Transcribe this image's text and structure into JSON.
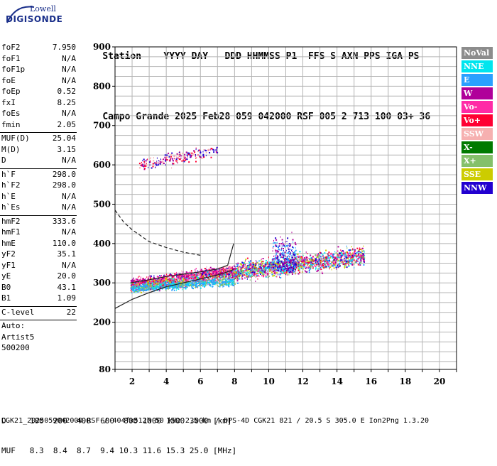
{
  "logo": {
    "line1": "Lowell",
    "line2": "DIGISONDE"
  },
  "header": {
    "row1": [
      "Station",
      "YYYY",
      "DAY",
      "DDD",
      "HHMMSS",
      "P1",
      "FFS",
      "S",
      "AXN",
      "PPS",
      "IGA",
      "PS"
    ],
    "row2": [
      "Campo Grande",
      "2025",
      "Feb28",
      "059",
      "042000",
      "RSF",
      "005",
      "2",
      "713",
      "100",
      "03+",
      "36"
    ]
  },
  "params": [
    {
      "k": "foF2",
      "v": "7.950"
    },
    {
      "k": "foF1",
      "v": "N/A"
    },
    {
      "k": "foF1p",
      "v": "N/A"
    },
    {
      "k": "foE",
      "v": "N/A"
    },
    {
      "k": "foEp",
      "v": "0.52"
    },
    {
      "k": "fxI",
      "v": "8.25"
    },
    {
      "k": "foEs",
      "v": "N/A"
    },
    {
      "k": "fmin",
      "v": "2.05"
    },
    {
      "k": "MUF(D)",
      "v": "25.04",
      "sep": true
    },
    {
      "k": "M(D)",
      "v": "3.15"
    },
    {
      "k": "D",
      "v": "N/A"
    },
    {
      "k": "h`F",
      "v": "298.0",
      "sep": true
    },
    {
      "k": "h`F2",
      "v": "298.0"
    },
    {
      "k": "h`E",
      "v": "N/A"
    },
    {
      "k": "h`Es",
      "v": "N/A"
    },
    {
      "k": "hmF2",
      "v": "333.6",
      "sep": true
    },
    {
      "k": "hmF1",
      "v": "N/A"
    },
    {
      "k": "hmE",
      "v": "110.0"
    },
    {
      "k": "yF2",
      "v": "35.1"
    },
    {
      "k": "yF1",
      "v": "N/A"
    },
    {
      "k": "yE",
      "v": "20.0"
    },
    {
      "k": "B0",
      "v": "43.1"
    },
    {
      "k": "B1",
      "v": "1.09"
    },
    {
      "k": "C-level",
      "v": "22",
      "sep": true
    },
    {
      "k": "Auto:",
      "v": "",
      "sep": true
    },
    {
      "k": "Artist5",
      "v": ""
    },
    {
      "k": "500200",
      "v": ""
    }
  ],
  "legend": [
    {
      "label": "NoVal",
      "color": "#8c8c8c"
    },
    {
      "label": "NNE",
      "color": "#00e5ee"
    },
    {
      "label": "E",
      "color": "#2aa0ff"
    },
    {
      "label": "W",
      "color": "#b0009a"
    },
    {
      "label": "Vo-",
      "color": "#ff2ba6"
    },
    {
      "label": "Vo+",
      "color": "#ff0033"
    },
    {
      "label": "SSW",
      "color": "#f6b0b0"
    },
    {
      "label": "X-",
      "color": "#007a00"
    },
    {
      "label": "X+",
      "color": "#84c06a"
    },
    {
      "label": "SSE",
      "color": "#cccc00"
    },
    {
      "label": "NNW",
      "color": "#2200d0"
    }
  ],
  "chart_data": {
    "type": "scatter",
    "xlim": [
      1,
      21
    ],
    "ylim": [
      80,
      900
    ],
    "xticks": [
      2,
      4,
      6,
      8,
      10,
      12,
      14,
      16,
      18,
      20
    ],
    "yticks": [
      80,
      200,
      300,
      400,
      500,
      600,
      700,
      800,
      900
    ],
    "grid": true,
    "clusters": [
      {
        "name": "o-trace",
        "xrange": [
          1.9,
          8.0
        ],
        "hstart": 300,
        "hend": 335,
        "spread": 12
      },
      {
        "name": "x-trace",
        "xrange": [
          1.9,
          8.3
        ],
        "hstart": 290,
        "hend": 325,
        "spread": 14
      },
      {
        "name": "lower-E-echo",
        "xrange": [
          1.9,
          8.0
        ],
        "hstart": 288,
        "hend": 305,
        "spread": 10
      },
      {
        "name": "spread-F",
        "xrange": [
          8.0,
          15.6
        ],
        "hstart": 330,
        "hend": 370,
        "spread": 22
      },
      {
        "name": "second-hop",
        "xrange": [
          2.4,
          7.0
        ],
        "hstart": 600,
        "hend": 640,
        "spread": 14
      },
      {
        "name": "oblique-plume",
        "xrange": [
          10.2,
          11.6
        ],
        "hstart": 330,
        "hend": 480,
        "spread": 40
      }
    ],
    "profile_curves": [
      {
        "name": "true-height-profile",
        "points": [
          [
            1.0,
            235
          ],
          [
            2.0,
            258
          ],
          [
            3.0,
            275
          ],
          [
            4.0,
            290
          ],
          [
            5.0,
            300
          ],
          [
            6.0,
            310
          ],
          [
            7.0,
            320
          ],
          [
            7.6,
            328
          ],
          [
            7.95,
            334
          ]
        ]
      },
      {
        "name": "model-trace",
        "points": [
          [
            1.0,
            485
          ],
          [
            1.5,
            455
          ],
          [
            2.0,
            435
          ],
          [
            2.5,
            420
          ],
          [
            3.0,
            405
          ],
          [
            4.0,
            390
          ],
          [
            5.0,
            378
          ],
          [
            6.0,
            370
          ]
        ]
      },
      {
        "name": "model-trace-o",
        "points": [
          [
            1.9,
            300
          ],
          [
            3.0,
            308
          ],
          [
            4.0,
            316
          ],
          [
            5.0,
            322
          ],
          [
            6.0,
            328
          ],
          [
            7.0,
            335
          ],
          [
            7.6,
            345
          ],
          [
            7.95,
            400
          ]
        ]
      }
    ]
  },
  "footer": {
    "d_label": "D",
    "d_values": "100  200  400  600  800 1000 1500 3000 [km]",
    "muf_label": "MUF",
    "muf_values": "8.3  8.4  8.7  9.4 10.3 11.6 15.3 25.0 [MHz]",
    "note": "CGK21_2025059042000.RSF / 404fx512h 50 kHz 2.5 km / DPS-4D CGK21 821 / 20.5 S 305.0 E Ion2Png 1.3.20"
  }
}
